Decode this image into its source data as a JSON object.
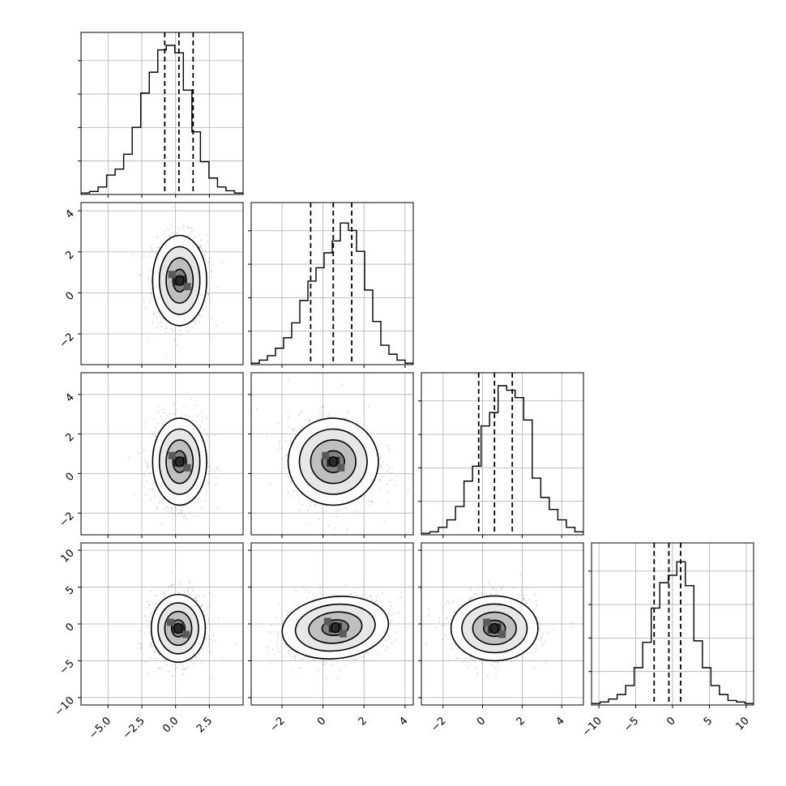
{
  "chart_data": {
    "type": "corner",
    "n_params": 4,
    "title": "",
    "xlabels": [
      "",
      "",
      "",
      ""
    ],
    "ylabels": [
      "",
      "",
      "",
      ""
    ],
    "grid": true,
    "params": [
      {
        "range": [
          -7.0,
          5.0
        ],
        "ticks": [
          -5.0,
          -2.5,
          0.0,
          2.5
        ],
        "tick_labels": [
          "−5.0",
          "−2.5",
          "0.0",
          "2.5"
        ],
        "quantiles": [
          -0.8,
          0.25,
          1.3
        ],
        "peak": 0.3
      },
      {
        "range": [
          -3.5,
          4.4
        ],
        "ticks": [
          -2,
          0,
          2,
          4
        ],
        "tick_labels": [
          "−2",
          "0",
          "2",
          "4"
        ],
        "quantiles": [
          -0.6,
          0.5,
          1.4
        ],
        "peak": 0.6
      },
      {
        "range": [
          -3.1,
          5.1
        ],
        "ticks": [
          -2,
          0,
          2,
          4
        ],
        "tick_labels": [
          "−2",
          "0",
          "2",
          "4"
        ],
        "quantiles": [
          -0.2,
          0.6,
          1.5
        ],
        "peak": 0.5
      },
      {
        "range": [
          -11.0,
          11.0
        ],
        "ticks": [
          -10,
          -5,
          0,
          5,
          10
        ],
        "tick_labels": [
          "−10",
          "−5",
          "0",
          "5",
          "10"
        ],
        "quantiles": [
          -2.5,
          -0.5,
          1.1
        ],
        "peak": -0.3
      }
    ],
    "hist_counts": [
      [
        0.01,
        0.02,
        0.05,
        0.13,
        0.17,
        0.27,
        0.45,
        0.68,
        0.82,
        0.97,
        1.0,
        0.95,
        0.7,
        0.42,
        0.22,
        0.11,
        0.05,
        0.025,
        0.01
      ],
      [
        0.01,
        0.03,
        0.06,
        0.11,
        0.18,
        0.28,
        0.43,
        0.56,
        0.65,
        0.75,
        0.83,
        0.95,
        0.9,
        0.76,
        0.5,
        0.29,
        0.13,
        0.07,
        0.03,
        0.01
      ],
      [
        0.01,
        0.02,
        0.05,
        0.1,
        0.19,
        0.36,
        0.46,
        0.73,
        0.82,
        1.0,
        0.97,
        0.92,
        0.77,
        0.38,
        0.25,
        0.17,
        0.1,
        0.05,
        0.02
      ],
      [
        0.01,
        0.02,
        0.04,
        0.07,
        0.13,
        0.25,
        0.42,
        0.65,
        0.82,
        0.87,
        0.96,
        0.8,
        0.43,
        0.25,
        0.13,
        0.07,
        0.03,
        0.02,
        0.01
      ]
    ],
    "pairs": [
      {
        "row": 1,
        "col": 0,
        "center": [
          0.3,
          0.6
        ],
        "sigma": [
          1.0,
          1.1
        ],
        "rho": 0.0
      },
      {
        "row": 2,
        "col": 0,
        "center": [
          0.3,
          0.6
        ],
        "sigma": [
          1.0,
          1.1
        ],
        "rho": 0.0
      },
      {
        "row": 2,
        "col": 1,
        "center": [
          0.5,
          0.6
        ],
        "sigma": [
          1.1,
          1.1
        ],
        "rho": -0.1
      },
      {
        "row": 3,
        "col": 0,
        "center": [
          0.2,
          -0.6
        ],
        "sigma": [
          1.0,
          2.3
        ],
        "rho": 0.0
      },
      {
        "row": 3,
        "col": 1,
        "center": [
          0.6,
          -0.5
        ],
        "sigma": [
          1.3,
          2.1
        ],
        "rho": 0.25
      },
      {
        "row": 3,
        "col": 2,
        "center": [
          0.6,
          -0.6
        ],
        "sigma": [
          1.1,
          2.2
        ],
        "rho": 0.0
      }
    ],
    "contour_levels": [
      0.5,
      1.0,
      1.5,
      2.0
    ],
    "colors": {
      "line": "#000000",
      "grid": "#b0b0b0",
      "points": "#7f7f7f",
      "fill_dark": "#2a2a2a"
    }
  }
}
